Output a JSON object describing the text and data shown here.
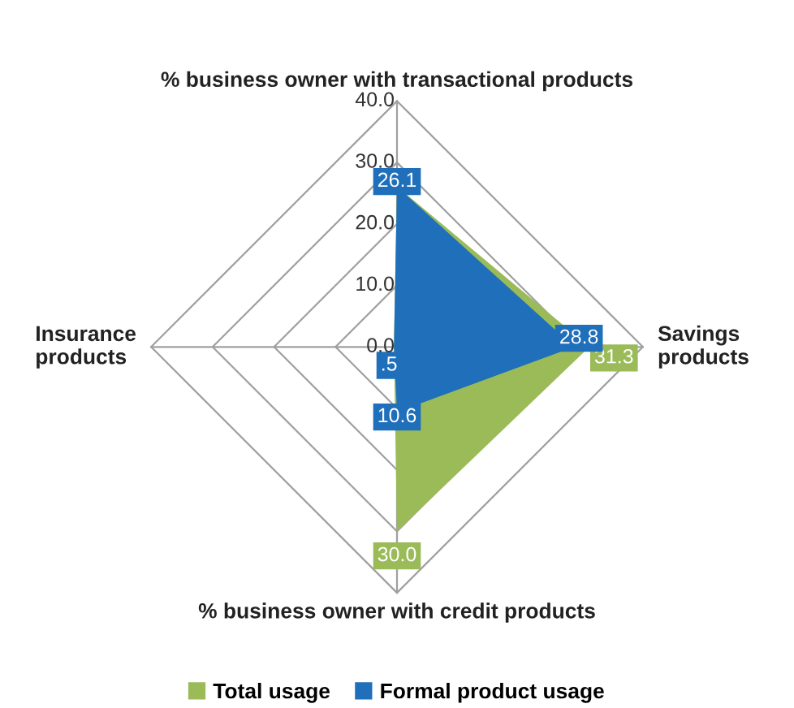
{
  "chart_data": {
    "type": "radar",
    "categories": [
      "% business owner with transactional products",
      "Savings\nproducts",
      "% business owner with credit products",
      "Insurance\nproducts"
    ],
    "series": [
      {
        "name": "Total usage",
        "color": "#9bbb59",
        "values": [
          26.1,
          31.3,
          30.0,
          0.5
        ],
        "value_labels": [
          null,
          "31.3",
          "30.0",
          null
        ]
      },
      {
        "name": "Formal product usage",
        "color": "#1f6fba",
        "values": [
          26.1,
          28.8,
          10.6,
          0.5
        ],
        "value_labels": [
          "26.1",
          "28.8",
          "10.6",
          ".5"
        ]
      }
    ],
    "ylim": [
      0,
      40
    ],
    "yticks": [
      {
        "value": 0,
        "label": "0.0"
      },
      {
        "value": 10,
        "label": "10.0"
      },
      {
        "value": 20,
        "label": "20.0"
      },
      {
        "value": 30,
        "label": "30.0"
      },
      {
        "value": 40,
        "label": "40.0"
      }
    ],
    "grid": true,
    "legend": "bottom"
  }
}
